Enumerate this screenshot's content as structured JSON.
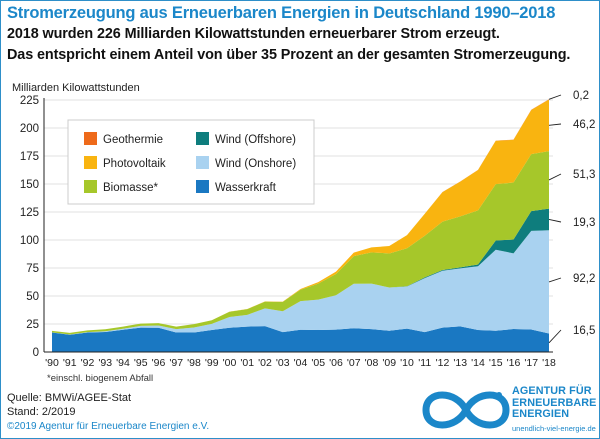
{
  "header": {
    "title": "Stromerzeugung aus Erneuerbaren Energien in Deutschland 1990–2018",
    "subtitle_line1": "2018 wurden 226 Milliarden Kilowattstunden erneuerbarer Strom erzeugt.",
    "subtitle_line2": "Das entspricht einem Anteil von über 35 Prozent an der gesamten Stromerzeugung."
  },
  "footer": {
    "source": "Quelle: BMWi/AGEE-Stat",
    "stand": "Stand: 2/2019",
    "copyright": "©2019 Agentur für Erneuerbare Energien e.V.",
    "note": "*einschl. biogenem Abfall"
  },
  "logo": {
    "line1": "AGENTUR FÜR",
    "line2": "ERNEUERBARE",
    "line3": "ENERGIEN",
    "url": "unendlich-viel-energie.de"
  },
  "colors": {
    "wasserkraft": "#1a78c2",
    "wind_onshore": "#a9d2f0",
    "wind_offshore": "#0e7d7d",
    "biomasse": "#a6c72a",
    "photovoltaik": "#f9b410",
    "geothermie": "#ee6a1a",
    "accent": "#1b87c9"
  },
  "chart_data": {
    "type": "area",
    "stacked": true,
    "ylabel": "Milliarden Kilowattstunden",
    "ylim": [
      0,
      225
    ],
    "yticks": [
      0,
      25,
      50,
      75,
      100,
      125,
      150,
      175,
      200,
      225
    ],
    "grid": true,
    "legend_position": "top-left",
    "categories": [
      "'90",
      "'91",
      "'92",
      "'93",
      "'94",
      "'95",
      "'96",
      "'97",
      "'98",
      "'99",
      "'00",
      "'01",
      "'02",
      "'03",
      "'04",
      "'05",
      "'06",
      "'07",
      "'08",
      "'09",
      "'10",
      "'11",
      "'12",
      "'13",
      "'14",
      "'15",
      "'16",
      "'17",
      "'18"
    ],
    "series": [
      {
        "name": "Wasserkraft",
        "key": "wasserkraft",
        "values": [
          17.4,
          15.4,
          17.4,
          17.9,
          19.9,
          21.8,
          21.7,
          17.4,
          17.4,
          19.6,
          21.7,
          22.7,
          23.1,
          17.7,
          19.9,
          19.6,
          20.0,
          21.2,
          20.4,
          19.0,
          20.9,
          17.7,
          21.8,
          22.9,
          19.6,
          19.0,
          20.5,
          20.1,
          16.5
        ]
      },
      {
        "name": "Wind (Onshore)",
        "key": "wind_onshore",
        "values": [
          0.1,
          0.2,
          0.3,
          0.6,
          0.9,
          1.5,
          2.0,
          3.0,
          4.5,
          5.5,
          9.5,
          10.5,
          15.8,
          18.7,
          25.5,
          27.2,
          30.7,
          39.7,
          40.6,
          38.6,
          37.6,
          48.3,
          50.7,
          51.8,
          57.0,
          72.3,
          67.6,
          88.0,
          92.2
        ]
      },
      {
        "name": "Wind (Offshore)",
        "key": "wind_offshore",
        "values": [
          0,
          0,
          0,
          0,
          0,
          0,
          0,
          0,
          0,
          0,
          0,
          0,
          0,
          0,
          0,
          0,
          0,
          0,
          0,
          0,
          0.2,
          0.6,
          0.7,
          0.9,
          1.5,
          8.3,
          12.3,
          17.7,
          19.3
        ]
      },
      {
        "name": "Biomasse*",
        "key": "biomasse",
        "values": [
          1.4,
          1.5,
          1.6,
          1.8,
          1.9,
          2.0,
          2.1,
          2.3,
          3.0,
          3.3,
          4.7,
          5.1,
          6.1,
          8.3,
          10.2,
          14.3,
          18.9,
          24.7,
          28.0,
          30.4,
          33.9,
          37.2,
          43.2,
          45.5,
          48.3,
          50.3,
          50.9,
          50.9,
          51.3
        ]
      },
      {
        "name": "Photovoltaik",
        "key": "photovoltaik",
        "values": [
          0,
          0,
          0,
          0,
          0,
          0,
          0,
          0,
          0,
          0,
          0.1,
          0.1,
          0.2,
          0.3,
          0.6,
          1.3,
          2.2,
          3.1,
          4.4,
          6.6,
          11.7,
          19.6,
          26.4,
          31.0,
          36.1,
          38.7,
          38.1,
          39.4,
          46.2
        ]
      },
      {
        "name": "Geothermie",
        "key": "geothermie",
        "values": [
          0,
          0,
          0,
          0,
          0,
          0,
          0,
          0,
          0,
          0,
          0,
          0,
          0,
          0,
          0,
          0,
          0,
          0,
          0,
          0,
          0,
          0,
          0.1,
          0.1,
          0.1,
          0.1,
          0.2,
          0.2,
          0.2
        ]
      }
    ],
    "end_labels": [
      {
        "key": "geothermie",
        "text": "0,2"
      },
      {
        "key": "photovoltaik",
        "text": "46,2"
      },
      {
        "key": "biomasse",
        "text": "51,3"
      },
      {
        "key": "wind_offshore",
        "text": "19,3"
      },
      {
        "key": "wind_onshore",
        "text": "92,2"
      },
      {
        "key": "wasserkraft",
        "text": "16,5"
      }
    ],
    "legend": [
      {
        "key": "geothermie",
        "label": "Geothermie"
      },
      {
        "key": "wind_offshore",
        "label": "Wind (Offshore)"
      },
      {
        "key": "photovoltaik",
        "label": "Photovoltaik"
      },
      {
        "key": "wind_onshore",
        "label": "Wind (Onshore)"
      },
      {
        "key": "biomasse",
        "label": "Biomasse*"
      },
      {
        "key": "wasserkraft",
        "label": "Wasserkraft"
      }
    ]
  }
}
